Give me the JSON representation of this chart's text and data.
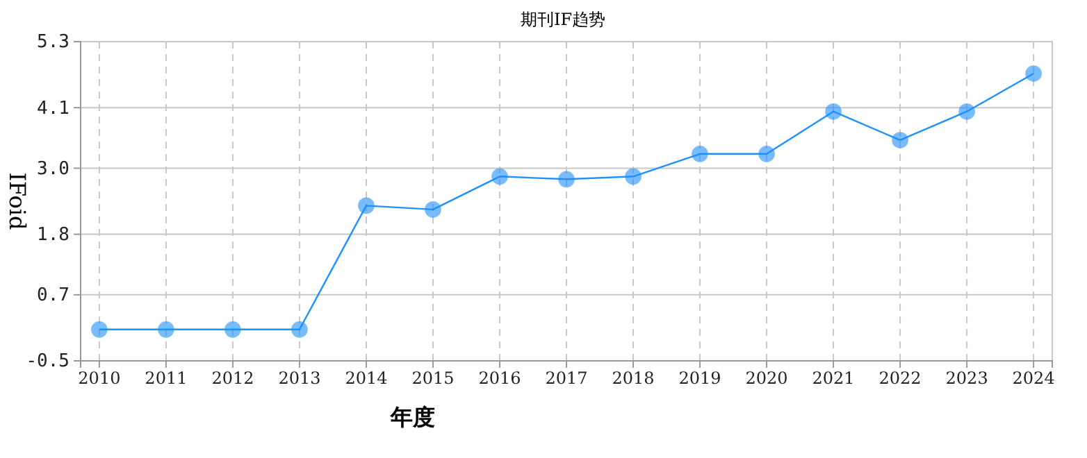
{
  "chart_data": {
    "type": "line",
    "title": "期刊IF趋势",
    "xlabel": "年度",
    "ylabel": "IFoid",
    "categories": [
      "2010",
      "2011",
      "2012",
      "2013",
      "2014",
      "2015",
      "2016",
      "2017",
      "2018",
      "2019",
      "2020",
      "2021",
      "2022",
      "2023",
      "2024"
    ],
    "series": [
      {
        "color": "#1e90ff",
        "values": [
          0.07,
          0.07,
          0.07,
          0.07,
          2.32,
          2.25,
          2.85,
          2.8,
          2.85,
          3.26,
          3.26,
          4.03,
          3.51,
          4.03,
          4.72
        ]
      }
    ],
    "ylim": [
      -0.5,
      5.3
    ],
    "yticks": [
      -0.5,
      0.7,
      1.8,
      {
        "value": 3,
        "label": "3.0"
      },
      4.1,
      5.3
    ],
    "grid": true,
    "marker": "circle",
    "line_style": "solid"
  }
}
